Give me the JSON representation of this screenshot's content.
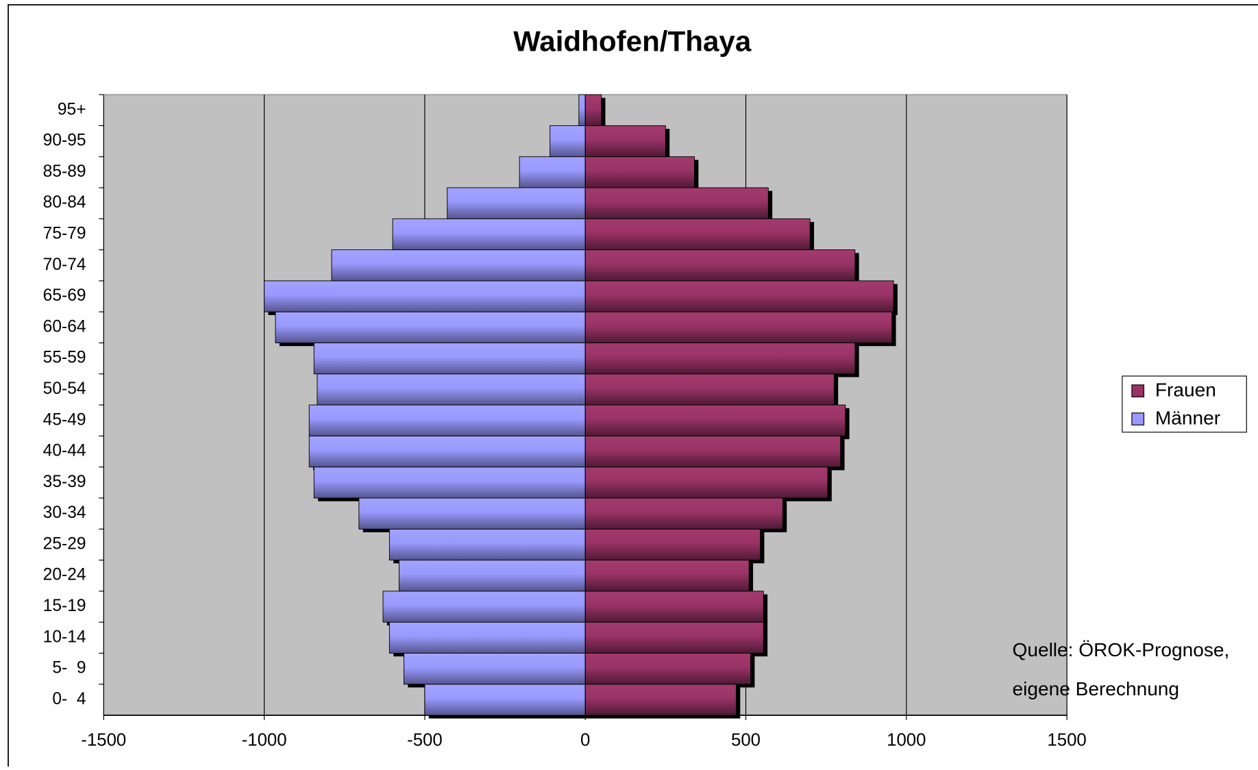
{
  "chart_data": {
    "type": "pyramid",
    "title": "Waidhofen/Thaya",
    "categories": [
      "0-  4",
      "5-  9",
      "10-14",
      "15-19",
      "20-24",
      "25-29",
      "30-34",
      "35-39",
      "40-44",
      "45-49",
      "50-54",
      "55-59",
      "60-64",
      "65-69",
      "70-74",
      "75-79",
      "80-84",
      "85-89",
      "90-95",
      "95+"
    ],
    "series": [
      {
        "name": "Männer",
        "color": "#9999ff",
        "values": [
          -500,
          -565,
          -610,
          -630,
          -580,
          -610,
          -705,
          -845,
          -860,
          -860,
          -835,
          -845,
          -965,
          -1000,
          -790,
          -600,
          -430,
          -205,
          -110,
          -20
        ]
      },
      {
        "name": "Frauen",
        "color": "#993366",
        "values": [
          470,
          515,
          555,
          555,
          510,
          545,
          615,
          755,
          795,
          810,
          775,
          840,
          955,
          960,
          840,
          700,
          570,
          340,
          250,
          50
        ]
      }
    ],
    "xlim": [
      -1500,
      1500
    ],
    "xticks": [
      -1500,
      -1000,
      -500,
      0,
      500,
      1000,
      1500
    ],
    "grid": true,
    "annotation": [
      "Quelle: ÖROK-Prognose,",
      "eigene Berechnung"
    ]
  }
}
